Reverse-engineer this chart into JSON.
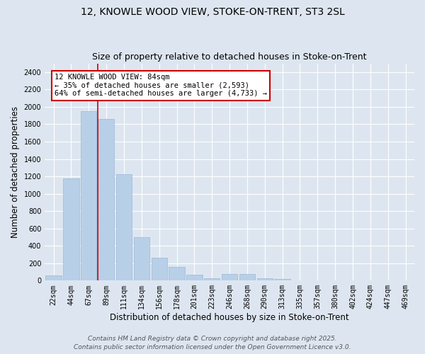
{
  "title_line1": "12, KNOWLE WOOD VIEW, STOKE-ON-TRENT, ST3 2SL",
  "title_line2": "Size of property relative to detached houses in Stoke-on-Trent",
  "xlabel": "Distribution of detached houses by size in Stoke-on-Trent",
  "ylabel": "Number of detached properties",
  "categories": [
    "22sqm",
    "44sqm",
    "67sqm",
    "89sqm",
    "111sqm",
    "134sqm",
    "156sqm",
    "178sqm",
    "201sqm",
    "223sqm",
    "246sqm",
    "268sqm",
    "290sqm",
    "313sqm",
    "335sqm",
    "357sqm",
    "380sqm",
    "402sqm",
    "424sqm",
    "447sqm",
    "469sqm"
  ],
  "values": [
    60,
    1175,
    1950,
    1860,
    1225,
    500,
    260,
    155,
    70,
    30,
    80,
    80,
    30,
    20,
    5,
    5,
    5,
    5,
    5,
    2,
    2
  ],
  "bar_color": "#b8cfe8",
  "bar_edge_color": "#9ab8d8",
  "bg_color": "#dde6f0",
  "grid_color": "#ffffff",
  "vline_color": "#cc0000",
  "annotation_text": "12 KNOWLE WOOD VIEW: 84sqm\n← 35% of detached houses are smaller (2,593)\n64% of semi-detached houses are larger (4,733) →",
  "annotation_box_color": "#cc0000",
  "ylim": [
    0,
    2500
  ],
  "yticks": [
    0,
    200,
    400,
    600,
    800,
    1000,
    1200,
    1400,
    1600,
    1800,
    2000,
    2200,
    2400
  ],
  "footer_line1": "Contains HM Land Registry data © Crown copyright and database right 2025.",
  "footer_line2": "Contains public sector information licensed under the Open Government Licence v3.0.",
  "title_fontsize": 10,
  "subtitle_fontsize": 9,
  "axis_label_fontsize": 8.5,
  "tick_fontsize": 7,
  "annotation_fontsize": 7.5,
  "footer_fontsize": 6.5
}
